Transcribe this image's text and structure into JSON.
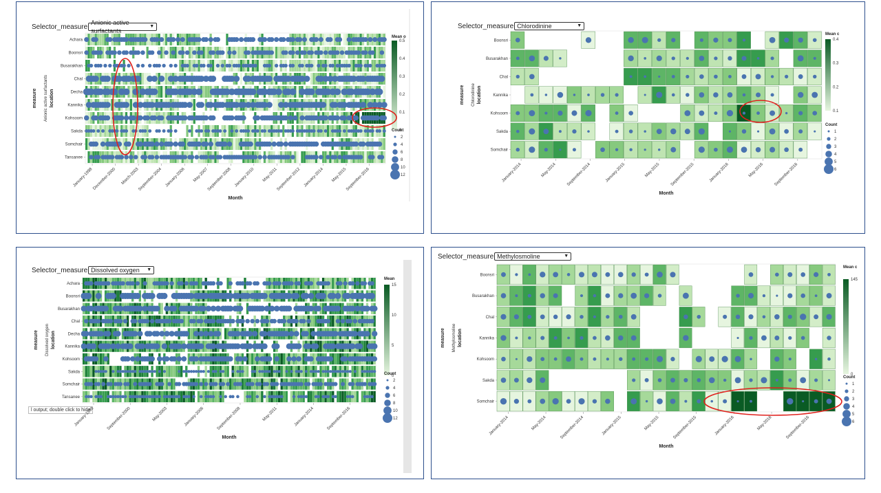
{
  "selector_label": "Selector_measure",
  "tooltip_text": "l output; double click to hide",
  "colors": {
    "panel_border": "#2b4e8c",
    "circle": "#4a74b0",
    "annotation": "#e0201c",
    "scale_light": "#e6f5df",
    "scale_dark": "#0a5b24"
  },
  "chart_data": [
    {
      "type": "heatmap",
      "selector_value": "Anionic active surfactants",
      "ylabel_outer": "measure",
      "ylabel_inner": "Anionic active surfactants",
      "ylabel_field": "location",
      "xlabel": "Month",
      "locations": [
        "Achara",
        "Boonsri",
        "Busarakhan",
        "Chal",
        "Decha",
        "Kannika",
        "Kohsoom",
        "Sakda",
        "Somchair",
        "Tansanee"
      ],
      "x_ticks": [
        "January-1998",
        "December-2000",
        "March-2003",
        "September-2004",
        "January-2006",
        "May-2007",
        "September-2008",
        "January-2010",
        "May-2011",
        "September-2012",
        "January-2014",
        "May-2015",
        "September-2016"
      ],
      "color_legend_title": "Mean o",
      "color_scale": [
        0.5,
        0.4,
        0.3,
        0.2,
        0.1,
        0.0
      ],
      "size_legend_title": "Count",
      "size_scale": [
        "2",
        "4",
        "6",
        "8",
        "10",
        "12"
      ],
      "annotations": [
        "oval around Busarakhan–Sakda columns near March-2003",
        "oval around Kohsoom dark cells near September-2016"
      ]
    },
    {
      "type": "heatmap",
      "selector_value": "Chlorodinine",
      "ylabel_outer": "measure",
      "ylabel_inner": "Chlorodinine",
      "ylabel_field": "location",
      "xlabel": "Month",
      "locations": [
        "Boonsri",
        "Busarakhan",
        "Chal",
        "Kannika",
        "Kohsoom",
        "Sakda",
        "Somchair"
      ],
      "x_ticks": [
        "January-2014",
        "May-2014",
        "September-2014",
        "January-2015",
        "May-2015",
        "September-2015",
        "January-2016",
        "May-2016",
        "September-2016"
      ],
      "color_legend_title": "Mean c",
      "color_scale": [
        0.4,
        0.3,
        0.2,
        0.1
      ],
      "size_legend_title": "Count",
      "size_scale": [
        "1",
        "2",
        "3",
        "4",
        "5",
        "6"
      ],
      "annotations": [
        "oval around Kohsoom dark cell near May-2016"
      ]
    },
    {
      "type": "heatmap",
      "selector_value": "Dissolved oxygen",
      "ylabel_outer": "measure",
      "ylabel_inner": "Dissolved oxygen",
      "ylabel_field": "location",
      "xlabel": "Month",
      "locations": [
        "Achara",
        "Boonsri",
        "Busarakhan",
        "Chal",
        "Decha",
        "Kannika",
        "Kohsoom",
        "Sakda",
        "Somchair",
        "Tansanee"
      ],
      "x_ticks": [
        "January-1998",
        "September-2000",
        "May-2003",
        "January-2006",
        "September-2008",
        "May-2011",
        "January-2014",
        "September-2016"
      ],
      "color_legend_title": "Mean",
      "color_scale": [
        15,
        10,
        5,
        0
      ],
      "size_legend_title": "Count",
      "size_scale": [
        "2",
        "4",
        "6",
        "8",
        "10",
        "12"
      ],
      "annotations": []
    },
    {
      "type": "heatmap",
      "selector_value": "Methylosmoline",
      "ylabel_outer": "measure",
      "ylabel_inner": "Methylosmoline",
      "ylabel_field": "location",
      "xlabel": "Month",
      "locations": [
        "Boonsri",
        "Busarakhan",
        "Chal",
        "Kannika",
        "Kohsoom",
        "Sakda",
        "Somchair"
      ],
      "x_ticks": [
        "January-2014",
        "May-2014",
        "September-2014",
        "January-2015",
        "May-2015",
        "September-2015",
        "January-2016",
        "May-2016",
        "September-2016"
      ],
      "color_legend_title": "Mean c",
      "color_scale": [
        145,
        0
      ],
      "size_legend_title": "Count",
      "size_scale": [
        "1",
        "2",
        "3",
        "4",
        "5",
        "6"
      ],
      "annotations": [
        "oval around Somchair dark cells January-2016 to September-2016"
      ]
    }
  ]
}
